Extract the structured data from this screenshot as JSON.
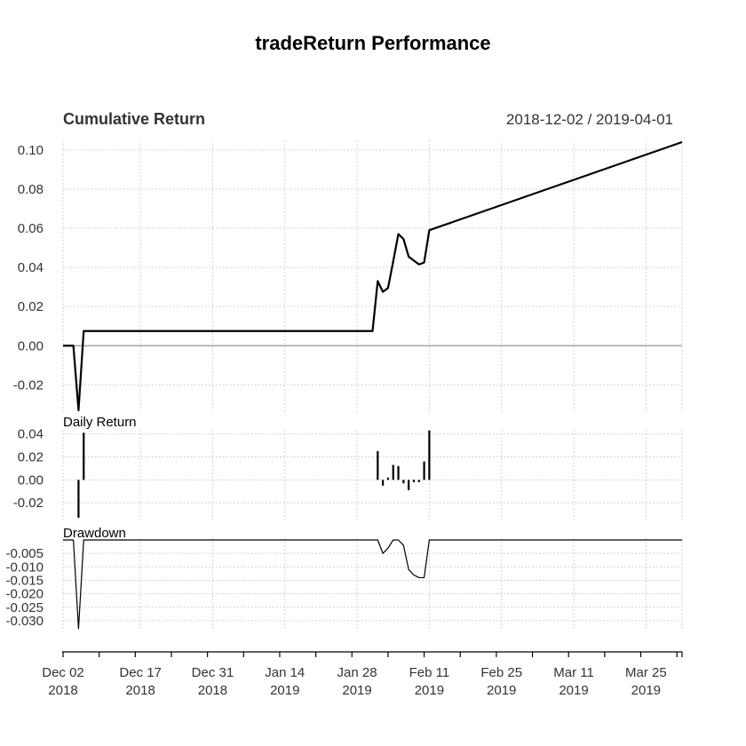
{
  "title": "tradeReturn Performance",
  "date_range": "2018-12-02 / 2019-04-01",
  "colors": {
    "series": "#000000",
    "grid": "#d3d3d3",
    "zero_line": "#999999",
    "text": "#333333"
  },
  "chart_data": [
    {
      "type": "line",
      "title": "Cumulative Return",
      "ylim": [
        -0.033,
        0.104
      ],
      "y_ticks": [
        "-0.02",
        "0.00",
        "0.02",
        "0.04",
        "0.06",
        "0.08",
        "0.10"
      ],
      "grid": true,
      "series": [
        {
          "x": [
            "2018-12-02",
            "2018-12-03",
            "2018-12-04",
            "2018-12-05",
            "2018-12-06",
            "2018-12-07",
            "2019-01-31",
            "2019-02-01",
            "2019-02-02",
            "2019-02-03",
            "2019-02-04",
            "2019-02-05",
            "2019-02-06",
            "2019-02-07",
            "2019-02-08",
            "2019-02-09",
            "2019-02-10",
            "2019-02-11",
            "2019-04-01"
          ],
          "values": [
            0.0,
            0.0,
            0.0,
            -0.033,
            0.0075,
            0.0075,
            0.0075,
            0.033,
            0.0275,
            0.0295,
            0.043,
            0.057,
            0.0545,
            0.0455,
            0.0435,
            0.0415,
            0.0425,
            0.059,
            0.104
          ]
        }
      ]
    },
    {
      "type": "bar",
      "title": "Daily Return",
      "ylim": [
        -0.033,
        0.042
      ],
      "y_ticks": [
        "-0.02",
        "0.00",
        "0.02",
        "0.04"
      ],
      "grid": true,
      "series": [
        {
          "x": [
            "2018-12-05",
            "2018-12-06",
            "2019-02-01",
            "2019-02-02",
            "2019-02-03",
            "2019-02-04",
            "2019-02-05",
            "2019-02-06",
            "2019-02-07",
            "2019-02-08",
            "2019-02-09",
            "2019-02-10",
            "2019-02-11"
          ],
          "values": [
            -0.033,
            0.041,
            0.025,
            -0.005,
            0.002,
            0.013,
            0.012,
            -0.003,
            -0.009,
            -0.002,
            -0.002,
            0.016,
            0.043
          ]
        }
      ]
    },
    {
      "type": "line",
      "title": "Drawdown",
      "ylim": [
        -0.033,
        0.0
      ],
      "y_ticks": [
        "-0.030",
        "-0.025",
        "-0.020",
        "-0.015",
        "-0.010",
        "-0.005"
      ],
      "grid": true,
      "series": [
        {
          "x": [
            "2018-12-02",
            "2018-12-03",
            "2018-12-04",
            "2018-12-05",
            "2018-12-06",
            "2019-01-31",
            "2019-02-01",
            "2019-02-02",
            "2019-02-03",
            "2019-02-04",
            "2019-02-05",
            "2019-02-06",
            "2019-02-07",
            "2019-02-08",
            "2019-02-09",
            "2019-02-10",
            "2019-02-11",
            "2019-04-01"
          ],
          "values": [
            0.0,
            0.0,
            0.0,
            -0.033,
            0.0,
            0.0,
            0.0,
            -0.005,
            -0.003,
            0.0,
            0.0,
            -0.002,
            -0.011,
            -0.013,
            -0.014,
            -0.014,
            0.0,
            0.0
          ]
        }
      ]
    }
  ],
  "x_axis": {
    "ticks": [
      {
        "date": "2018-12-02",
        "label": [
          "Dec 02",
          "2018"
        ]
      },
      {
        "date": "2018-12-17",
        "label": [
          "Dec 17",
          "2018"
        ]
      },
      {
        "date": "2018-12-31",
        "label": [
          "Dec 31",
          "2018"
        ]
      },
      {
        "date": "2019-01-14",
        "label": [
          "Jan 14",
          "2019"
        ]
      },
      {
        "date": "2019-01-28",
        "label": [
          "Jan 28",
          "2019"
        ]
      },
      {
        "date": "2019-02-11",
        "label": [
          "Feb 11",
          "2019"
        ]
      },
      {
        "date": "2019-02-25",
        "label": [
          "Feb 25",
          "2019"
        ]
      },
      {
        "date": "2019-03-11",
        "label": [
          "Mar 11",
          "2019"
        ]
      },
      {
        "date": "2019-03-25",
        "label": [
          "Mar 25",
          "2019"
        ]
      }
    ],
    "range": [
      "2018-12-02",
      "2019-04-01"
    ]
  }
}
